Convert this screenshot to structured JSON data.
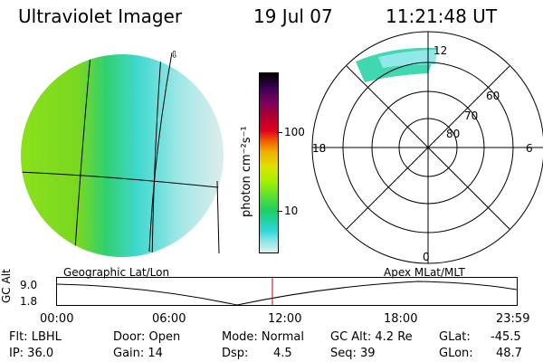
{
  "header": {
    "title": "Ultraviolet Imager",
    "date": "19 Jul 07",
    "time": "11:21:48 UT"
  },
  "colorbar": {
    "unit_label": "photon cm⁻²s⁻¹",
    "ticks": [
      "100",
      "10"
    ],
    "colors": [
      "#000000",
      "#3a0050",
      "#7a0060",
      "#b00030",
      "#e00020",
      "#f06000",
      "#f0b000",
      "#e0e000",
      "#a8f000",
      "#60e030",
      "#20d060",
      "#20d0a0",
      "#30d8d8",
      "#90e8e8",
      "#e0f0f0"
    ]
  },
  "polar": {
    "mlt_labels": {
      "top": "12",
      "bottom": "0",
      "left": "18",
      "right": "6"
    },
    "lat_labels": [
      "60",
      "70",
      "80"
    ]
  },
  "panel_labels": {
    "left": "Geographic Lat/Lon",
    "right": "Apex MLat/MLT"
  },
  "orbit_plot": {
    "ylabel": "GC Alt",
    "yticks": [
      "9.0",
      "1.8"
    ],
    "xticks": [
      "00:00",
      "06:00",
      "12:00",
      "18:00",
      "23:59"
    ],
    "current_time_color": "#c00000"
  },
  "footer": {
    "filter": "Flt: LBHL",
    "ip": "IP: 36.0",
    "door": "Door: Open",
    "gain": "Gain: 14",
    "mode": "Mode: Normal",
    "dsp_label": "Dsp:",
    "dsp_value": "4.5",
    "gcalt": "GC Alt: 4.2 Re",
    "seq": "Seq: 39",
    "glat_label": "GLat:",
    "glat_value": "-45.5",
    "glon_label": "GLon:",
    "glon_value": "48.7"
  }
}
